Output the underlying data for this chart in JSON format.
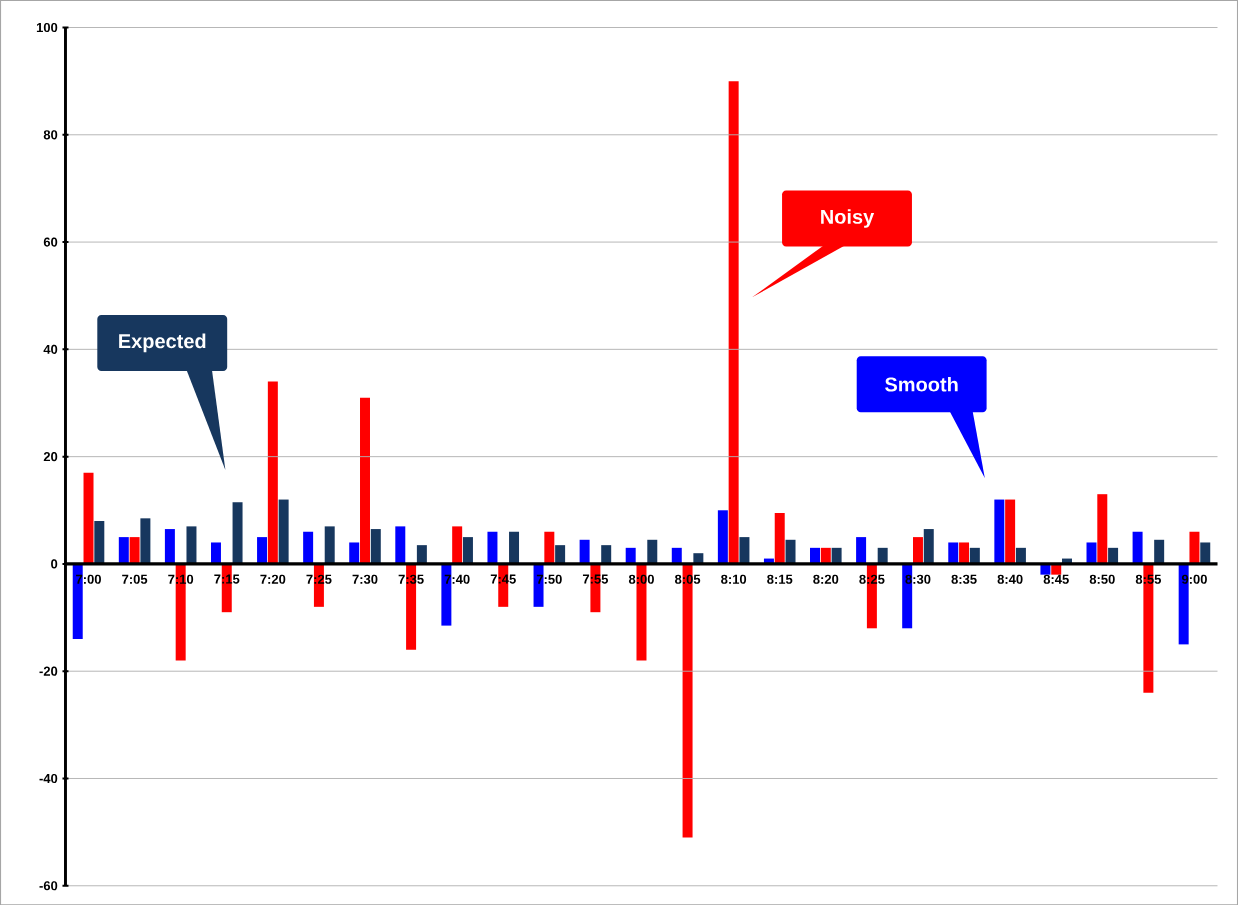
{
  "chart_data": {
    "type": "bar",
    "categories": [
      "7:00",
      "7:05",
      "7:10",
      "7:15",
      "7:20",
      "7:25",
      "7:30",
      "7:35",
      "7:40",
      "7:45",
      "7:50",
      "7:55",
      "8:00",
      "8:05",
      "8:10",
      "8:15",
      "8:20",
      "8:25",
      "8:30",
      "8:35",
      "8:40",
      "8:45",
      "8:50",
      "8:55",
      "9:00"
    ],
    "series": [
      {
        "name": "Smooth",
        "color": "#0000ff",
        "values": [
          -14,
          5,
          6.5,
          4,
          5,
          6,
          4,
          7,
          -11.5,
          6,
          -8,
          4.5,
          3,
          3,
          10,
          1,
          3,
          5,
          -12,
          4,
          12,
          -2,
          4,
          6,
          -15
        ]
      },
      {
        "name": "Noisy",
        "color": "#ff0000",
        "values": [
          17,
          5,
          -18,
          -9,
          34,
          -8,
          31,
          -16,
          7,
          -8,
          6,
          -9,
          -18,
          -51,
          90,
          9.5,
          3,
          -12,
          5,
          4,
          12,
          -2,
          13,
          -24,
          6
        ]
      },
      {
        "name": "Expected",
        "color": "#17375e",
        "values": [
          8,
          8.5,
          7,
          11.5,
          12,
          7,
          6.5,
          3.5,
          5,
          6,
          3.5,
          3.5,
          4.5,
          2,
          5,
          4.5,
          3,
          3,
          6.5,
          3,
          3,
          1,
          3,
          4.5,
          4
        ]
      }
    ],
    "ylim": [
      -60,
      100
    ],
    "yticks": [
      -60,
      -40,
      -20,
      0,
      20,
      40,
      60,
      80,
      100
    ],
    "grid": "y",
    "legend": false
  }
}
